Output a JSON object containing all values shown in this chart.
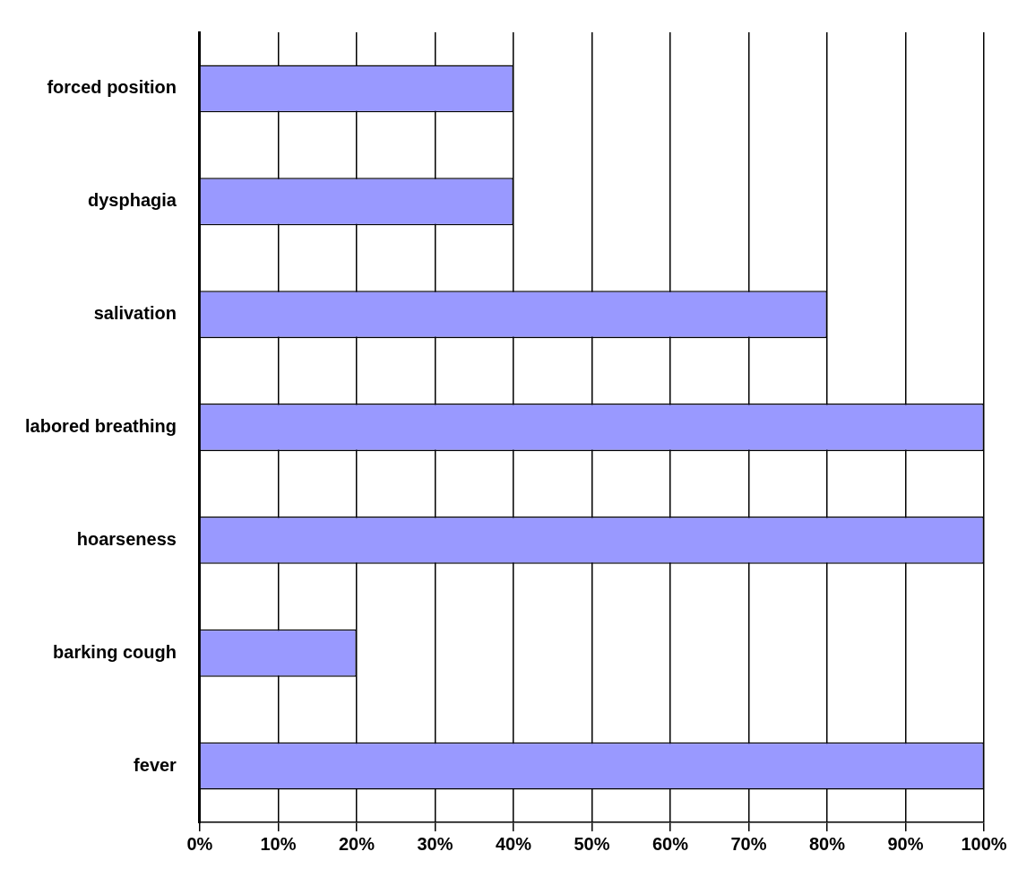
{
  "chart_data": {
    "type": "bar",
    "orientation": "horizontal",
    "categories": [
      "forced position",
      "dysphagia",
      "salivation",
      "labored breathing",
      "hoarseness",
      "barking cough",
      "fever"
    ],
    "values": [
      40,
      40,
      80,
      100,
      100,
      20,
      100
    ],
    "color": "#9999ff",
    "xlim": [
      0,
      100
    ],
    "xticks": [
      {
        "value": 0,
        "label": "0%"
      },
      {
        "value": 10,
        "label": "10%"
      },
      {
        "value": 20,
        "label": "20%"
      },
      {
        "value": 30,
        "label": "30%"
      },
      {
        "value": 40,
        "label": "40%"
      },
      {
        "value": 50,
        "label": "50%"
      },
      {
        "value": 60,
        "label": "60%"
      },
      {
        "value": 70,
        "label": "70%"
      },
      {
        "value": 80,
        "label": "80%"
      },
      {
        "value": 90,
        "label": "90%"
      },
      {
        "value": 100,
        "label": "100%"
      }
    ],
    "grid": "x",
    "legend": false
  }
}
